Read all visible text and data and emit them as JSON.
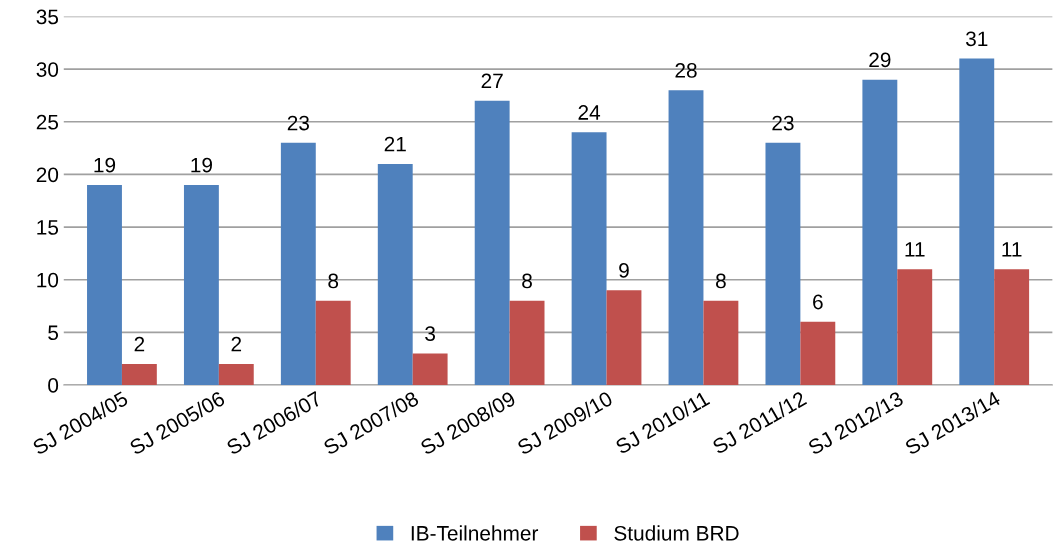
{
  "chart_data": {
    "type": "bar",
    "categories": [
      "SJ 2004/05",
      "SJ 2005/06",
      "SJ 2006/07",
      "SJ 2007/08",
      "SJ 2008/09",
      "SJ 2009/10",
      "SJ 2010/11",
      "SJ 2011/12",
      "SJ 2012/13",
      "SJ 2013/14"
    ],
    "series": [
      {
        "name": "IB-Teilnehmer",
        "color": "#4f81bd",
        "values": [
          19,
          19,
          23,
          21,
          27,
          24,
          28,
          23,
          29,
          31
        ]
      },
      {
        "name": "Studium BRD",
        "color": "#c0504d",
        "values": [
          2,
          2,
          8,
          3,
          8,
          9,
          8,
          6,
          11,
          11
        ]
      }
    ],
    "ylim": [
      0,
      35
    ],
    "yticks": [
      0,
      5,
      10,
      15,
      20,
      25,
      30,
      35
    ],
    "grid": "y",
    "legend": "bottom",
    "data_labels": true
  }
}
